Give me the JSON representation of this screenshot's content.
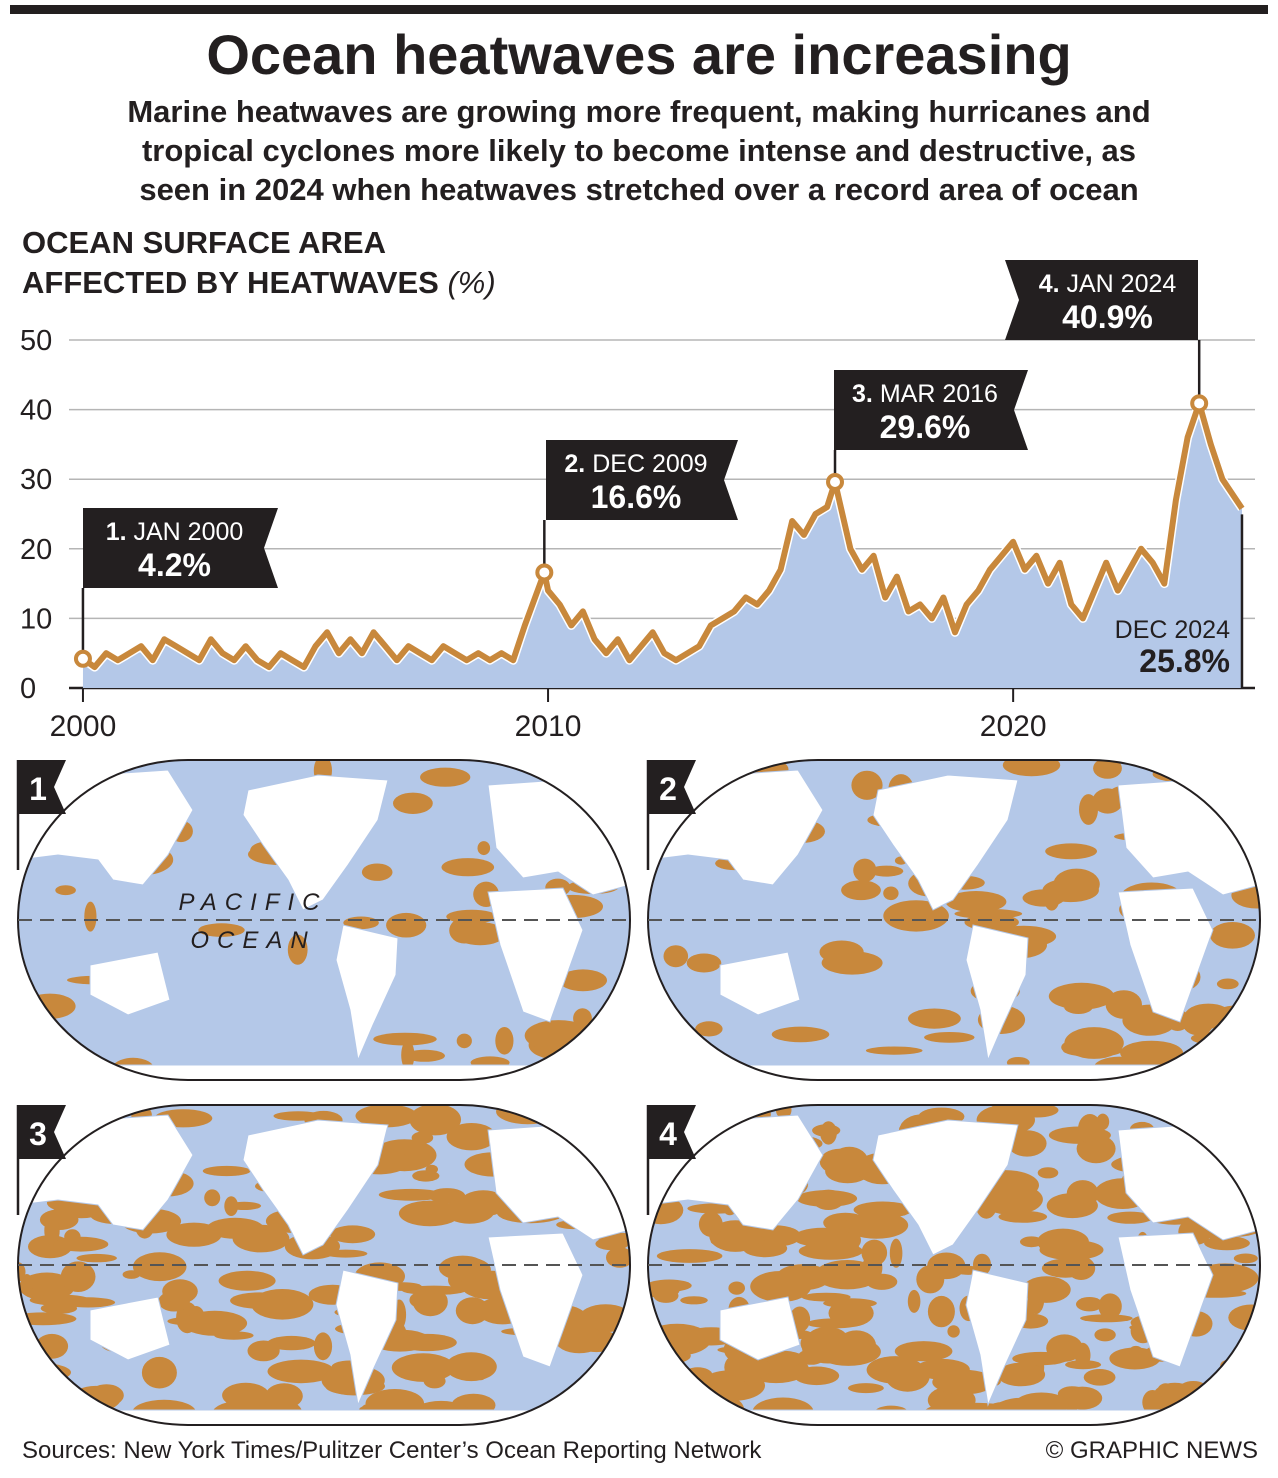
{
  "title": "Ocean heatwaves are increasing",
  "subtitle": [
    "Marine heatwaves are growing more frequent, making hurricanes and",
    "tropical cyclones more likely to become intense and destructive, as",
    "seen in 2024 when heatwaves stretched over a record area of ocean"
  ],
  "chart_data": {
    "type": "area",
    "axis_title": [
      "OCEAN SURFACE AREA",
      "AFFECTED BY HEATWAVES"
    ],
    "axis_unit": "(%)",
    "x": [
      2000,
      2000.25,
      2000.5,
      2000.75,
      2001,
      2001.25,
      2001.5,
      2001.75,
      2002,
      2002.25,
      2002.5,
      2002.75,
      2003,
      2003.25,
      2003.5,
      2003.75,
      2004,
      2004.25,
      2004.5,
      2004.75,
      2005,
      2005.25,
      2005.5,
      2005.75,
      2006,
      2006.25,
      2006.5,
      2006.75,
      2007,
      2007.25,
      2007.5,
      2007.75,
      2008,
      2008.25,
      2008.5,
      2008.75,
      2009,
      2009.25,
      2009.5,
      2009.92,
      2010,
      2010.25,
      2010.5,
      2010.75,
      2011,
      2011.25,
      2011.5,
      2011.75,
      2012,
      2012.25,
      2012.5,
      2012.75,
      2013,
      2013.25,
      2013.5,
      2013.75,
      2014,
      2014.25,
      2014.5,
      2014.75,
      2015,
      2015.25,
      2015.5,
      2015.75,
      2016,
      2016.17,
      2016.5,
      2016.75,
      2017,
      2017.25,
      2017.5,
      2017.75,
      2018,
      2018.25,
      2018.5,
      2018.75,
      2019,
      2019.25,
      2019.5,
      2019.75,
      2020,
      2020.25,
      2020.5,
      2020.75,
      2021,
      2021.25,
      2021.5,
      2021.75,
      2022,
      2022.25,
      2022.5,
      2022.75,
      2023,
      2023.25,
      2023.5,
      2023.75,
      2024,
      2024.25,
      2024.5,
      2024.92
    ],
    "values": [
      4.2,
      3,
      5,
      4,
      5,
      6,
      4,
      7,
      6,
      5,
      4,
      7,
      5,
      4,
      6,
      4,
      3,
      5,
      4,
      3,
      6,
      8,
      5,
      7,
      5,
      8,
      6,
      4,
      6,
      5,
      4,
      6,
      5,
      4,
      5,
      4,
      5,
      4,
      9,
      16.6,
      14,
      12,
      9,
      11,
      7,
      5,
      7,
      4,
      6,
      8,
      5,
      4,
      5,
      6,
      9,
      10,
      11,
      13,
      12,
      14,
      17,
      24,
      22,
      25,
      26,
      29.6,
      20,
      17,
      19,
      13,
      16,
      11,
      12,
      10,
      13,
      8,
      12,
      14,
      17,
      19,
      21,
      17,
      19,
      15,
      18,
      12,
      10,
      14,
      18,
      14,
      17,
      20,
      18,
      15,
      27,
      36,
      40.9,
      35,
      30,
      25.8
    ],
    "color": "#c8883c",
    "fill": "#b4c8e8",
    "xlim": [
      1999.7,
      2025.2
    ],
    "xticks": [
      2000,
      2010,
      2020
    ],
    "ylim": [
      0,
      50
    ],
    "yticks": [
      0,
      10,
      20,
      30,
      40,
      50
    ],
    "grid": true,
    "annotations": [
      {
        "number": "1.",
        "date": "JAN 2000",
        "label": "4.2%",
        "x": 2000,
        "value": 4.2
      },
      {
        "number": "2.",
        "date": "DEC 2009",
        "label": "16.6%",
        "x": 2009.92,
        "value": 16.6
      },
      {
        "number": "3.",
        "date": "MAR 2016",
        "label": "29.6%",
        "x": 2016.17,
        "value": 29.6
      },
      {
        "number": "4.",
        "date": "JAN 2024",
        "label": "40.9%",
        "x": 2024,
        "value": 40.9
      },
      {
        "date": "DEC 2024",
        "label": "25.8%",
        "x": 2024.92,
        "value": 25.8
      }
    ]
  },
  "maps": [
    {
      "number": "1",
      "label": [
        "PACIFIC",
        "OCEAN"
      ]
    },
    {
      "number": "2"
    },
    {
      "number": "3"
    },
    {
      "number": "4"
    }
  ],
  "sources": "Sources: New York Times/Pulitzer Center’s Ocean Reporting Network",
  "credit": "© GRAPHIC NEWS"
}
